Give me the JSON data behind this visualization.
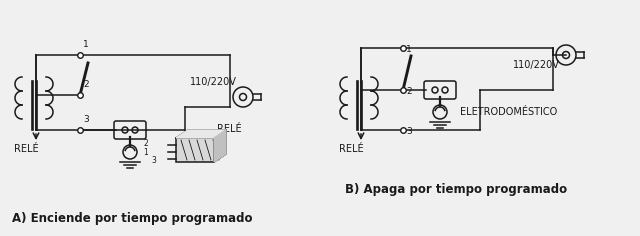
{
  "background_color": "#f0f0f0",
  "title_A": "A) Enciende por tiempo programado",
  "title_B": "B) Apaga por tiempo programado",
  "label_rele_A": "RELÉ",
  "label_rele_B": "RELÉ",
  "label_voltage_A": "110/220V",
  "label_voltage_B": "110/220V",
  "label_rele2_A": "RELÉ",
  "label_electro_B": "ELETRODOMÉSTICO",
  "fig_width": 6.4,
  "fig_height": 2.36,
  "dpi": 100,
  "line_color": "#1a1a1a",
  "text_color": "#111111"
}
